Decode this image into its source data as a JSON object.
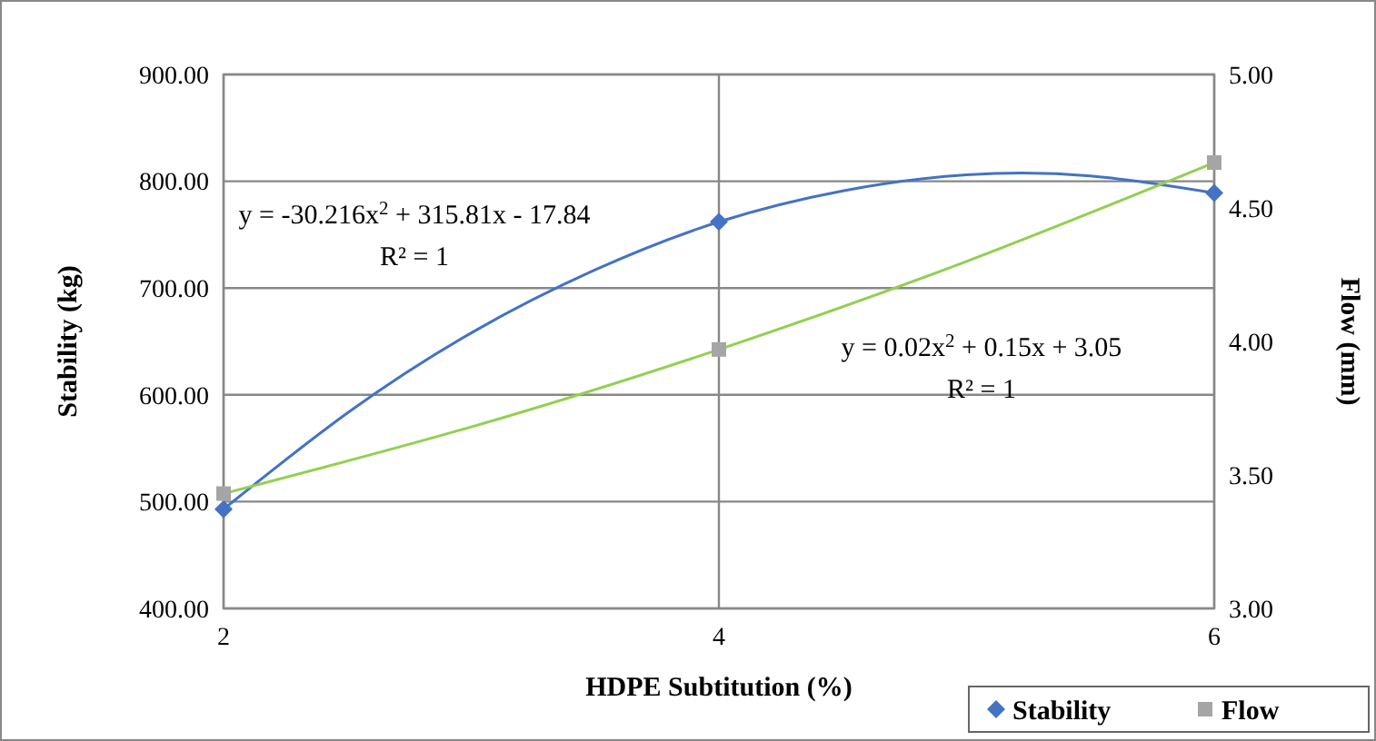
{
  "chart_data": {
    "type": "scatter",
    "xlabel": "HDPE Subtitution (%)",
    "ylabel": "Stability (kg)",
    "y2label": "Flow (mm)",
    "xlim": [
      2,
      6
    ],
    "xticks": [
      2,
      4,
      6
    ],
    "ylim": [
      400,
      900
    ],
    "yticks": [
      {
        "value": 400,
        "label": "400.00"
      },
      {
        "value": 500,
        "label": "500.00"
      },
      {
        "value": 600,
        "label": "600.00"
      },
      {
        "value": 700,
        "label": "700.00"
      },
      {
        "value": 800,
        "label": "800.00"
      },
      {
        "value": 900,
        "label": "900.00"
      }
    ],
    "y2lim": [
      3,
      5
    ],
    "y2ticks": [
      {
        "value": 3,
        "label": "3.00"
      },
      {
        "value": 3.5,
        "label": "3.50"
      },
      {
        "value": 4,
        "label": "4.00"
      },
      {
        "value": 4.5,
        "label": "4.50"
      },
      {
        "value": 5,
        "label": "5.00"
      }
    ],
    "grid": true,
    "legend": "bottom right",
    "series": [
      {
        "type": "line",
        "color": "#4472c4",
        "x": [
          2,
          2.5,
          3,
          3.5,
          4,
          4.5,
          5,
          5.5,
          6
        ],
        "values": [
          493,
          583,
          658,
          717,
          762,
          791,
          806,
          805,
          789
        ],
        "marker": "none"
      },
      {
        "type": "line",
        "color": "#92d050",
        "axis": "y2",
        "x": [
          2,
          3,
          4,
          5,
          6
        ],
        "values": [
          3.43,
          3.68,
          3.97,
          4.3,
          4.67
        ],
        "marker": "none"
      },
      {
        "name": "Stability",
        "color": "#4472c4",
        "x": [
          2,
          4,
          6
        ],
        "values": [
          493,
          762,
          789
        ],
        "marker": "diamond"
      },
      {
        "name": "Flow",
        "color": "#a5a5a5",
        "axis": "y2",
        "x": [
          2,
          4,
          6
        ],
        "values": [
          3.43,
          3.97,
          4.67
        ],
        "marker": "square"
      }
    ],
    "annotations": [
      "y = -30.216x$^{2}$ + 315.81x - 17.84",
      "R² = 1",
      "y = 0.02x$^{2}$ + 0.15x + 3.05",
      "R² = 1"
    ]
  }
}
